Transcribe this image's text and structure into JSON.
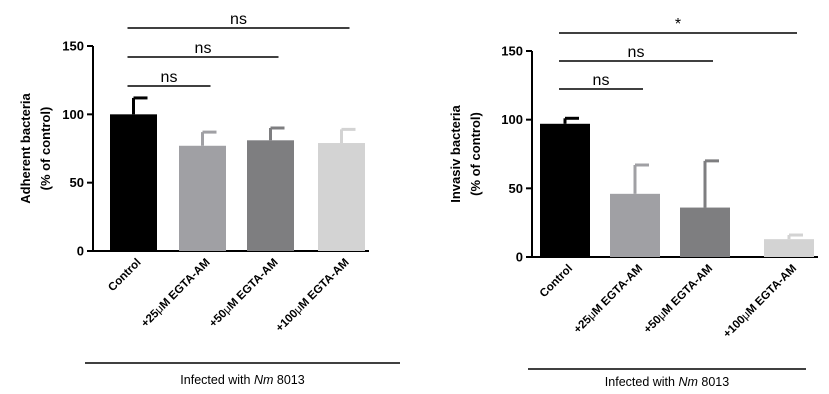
{
  "chart_data": [
    {
      "type": "bar",
      "title": "",
      "ylabel_lines": [
        "Adherent bacteria",
        "(% of control)"
      ],
      "xlabel": "",
      "ylim": [
        0,
        150
      ],
      "yticks": [
        0,
        50,
        100,
        150
      ],
      "categories": [
        "Control",
        "+25μM EGTA-AM",
        "+50μM EGTA-AM",
        "+100μM EGTA-AM"
      ],
      "values": [
        100,
        77,
        81,
        79
      ],
      "errors": [
        12,
        10,
        9,
        10
      ],
      "colors": [
        "#000000",
        "#a0a0a4",
        "#7e7e80",
        "#d3d3d3"
      ],
      "significance": [
        {
          "from": 0,
          "to": 1,
          "label": "ns"
        },
        {
          "from": 0,
          "to": 2,
          "label": "ns"
        },
        {
          "from": 0,
          "to": 3,
          "label": "ns"
        }
      ],
      "group_label": {
        "prefix": "Infected with ",
        "italic": "Nm",
        "suffix": " 8013"
      }
    },
    {
      "type": "bar",
      "title": "",
      "ylabel_lines": [
        "Invasiv bacteria",
        "(% of control)"
      ],
      "xlabel": "",
      "ylim": [
        0,
        150
      ],
      "yticks": [
        0,
        50,
        100,
        150
      ],
      "categories": [
        "Control",
        "+25μM EGTA-AM",
        "+50μM EGTA-AM",
        "+100μM EGTA-AM"
      ],
      "values": [
        97,
        46,
        36,
        13
      ],
      "errors": [
        4,
        21,
        34,
        3
      ],
      "colors": [
        "#000000",
        "#a0a0a4",
        "#7e7e80",
        "#d3d3d3"
      ],
      "significance": [
        {
          "from": 0,
          "to": 1,
          "label": "ns"
        },
        {
          "from": 0,
          "to": 2,
          "label": "ns"
        },
        {
          "from": 0,
          "to": 3,
          "label": "*"
        }
      ],
      "group_label": {
        "prefix": "Infected with ",
        "italic": "Nm",
        "suffix": " 8013"
      }
    }
  ]
}
